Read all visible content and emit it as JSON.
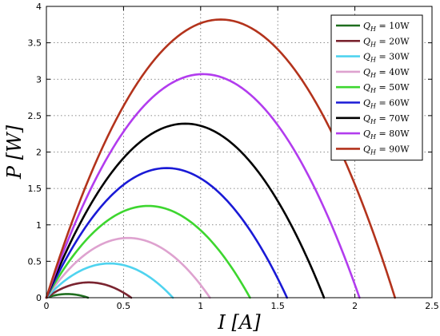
{
  "chart_data": {
    "type": "line",
    "title": "",
    "xlabel": "I [A]",
    "ylabel": "P [W]",
    "xlim": [
      0,
      2.5
    ],
    "ylim": [
      0,
      4
    ],
    "xticks": [
      0,
      0.5,
      1,
      1.5,
      2,
      2.5
    ],
    "xtick_labels": [
      "0",
      "0.5",
      "1",
      "1.5",
      "2",
      "2.5"
    ],
    "yticks": [
      0,
      0.5,
      1,
      1.5,
      2,
      2.5,
      3,
      3.5,
      4
    ],
    "ytick_labels": [
      "0",
      "0.5",
      "1",
      "1.5",
      "2",
      "2.5",
      "3",
      "3.5",
      "4"
    ],
    "grid": true,
    "legend_position": "top-right",
    "series": [
      {
        "name": "Q_H = 10W",
        "label_main": "Q",
        "label_sub": "H",
        "label_rest": " = 10W",
        "color": "#1f6e1f",
        "i_max": 0.27,
        "p_max": 0.05
      },
      {
        "name": "Q_H = 20W",
        "label_main": "Q",
        "label_sub": "H",
        "label_rest": " = 20W",
        "color": "#7a2430",
        "i_max": 0.55,
        "p_max": 0.21
      },
      {
        "name": "Q_H = 30W",
        "label_main": "Q",
        "label_sub": "H",
        "label_rest": " = 30W",
        "color": "#4fd3ef",
        "i_max": 0.82,
        "p_max": 0.47
      },
      {
        "name": "Q_H = 40W",
        "label_main": "Q",
        "label_sub": "H",
        "label_rest": " = 40W",
        "color": "#dea2cf",
        "i_max": 1.06,
        "p_max": 0.82
      },
      {
        "name": "Q_H = 50W",
        "label_main": "Q",
        "label_sub": "H",
        "label_rest": " = 50W",
        "color": "#3dd62f",
        "i_max": 1.32,
        "p_max": 1.26
      },
      {
        "name": "Q_H = 60W",
        "label_main": "Q",
        "label_sub": "H",
        "label_rest": " = 60W",
        "color": "#1a1ad6",
        "i_max": 1.56,
        "p_max": 1.78
      },
      {
        "name": "Q_H = 70W",
        "label_main": "Q",
        "label_sub": "H",
        "label_rest": " = 70W",
        "color": "#000000",
        "i_max": 1.8,
        "p_max": 2.39
      },
      {
        "name": "Q_H = 80W",
        "label_main": "Q",
        "label_sub": "H",
        "label_rest": " = 80W",
        "color": "#b23cee",
        "i_max": 2.03,
        "p_max": 3.07
      },
      {
        "name": "Q_H = 90W",
        "label_main": "Q",
        "label_sub": "H",
        "label_rest": " = 90W",
        "color": "#b3331c",
        "i_max": 2.26,
        "p_max": 3.82
      }
    ]
  }
}
